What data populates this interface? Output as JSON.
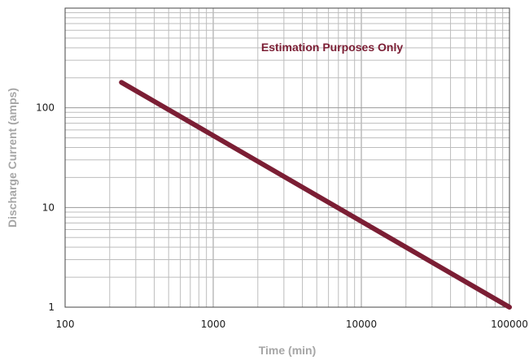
{
  "chart_data": {
    "type": "line",
    "title": "",
    "annotation": "Estimation Purposes Only",
    "xlabel": "Time (min)",
    "ylabel": "Discharge Current (amps)",
    "x_scale": "log",
    "y_scale": "log",
    "xlim": [
      100,
      100000
    ],
    "ylim": [
      1,
      1000
    ],
    "x_ticks": [
      "100",
      "1000",
      "10000",
      "100000"
    ],
    "y_ticks": [
      "1",
      "10",
      "100"
    ],
    "grid": true,
    "series": [
      {
        "x": [
          240,
          100000
        ],
        "y": [
          180,
          1
        ],
        "color": "#7b1e34"
      }
    ]
  }
}
